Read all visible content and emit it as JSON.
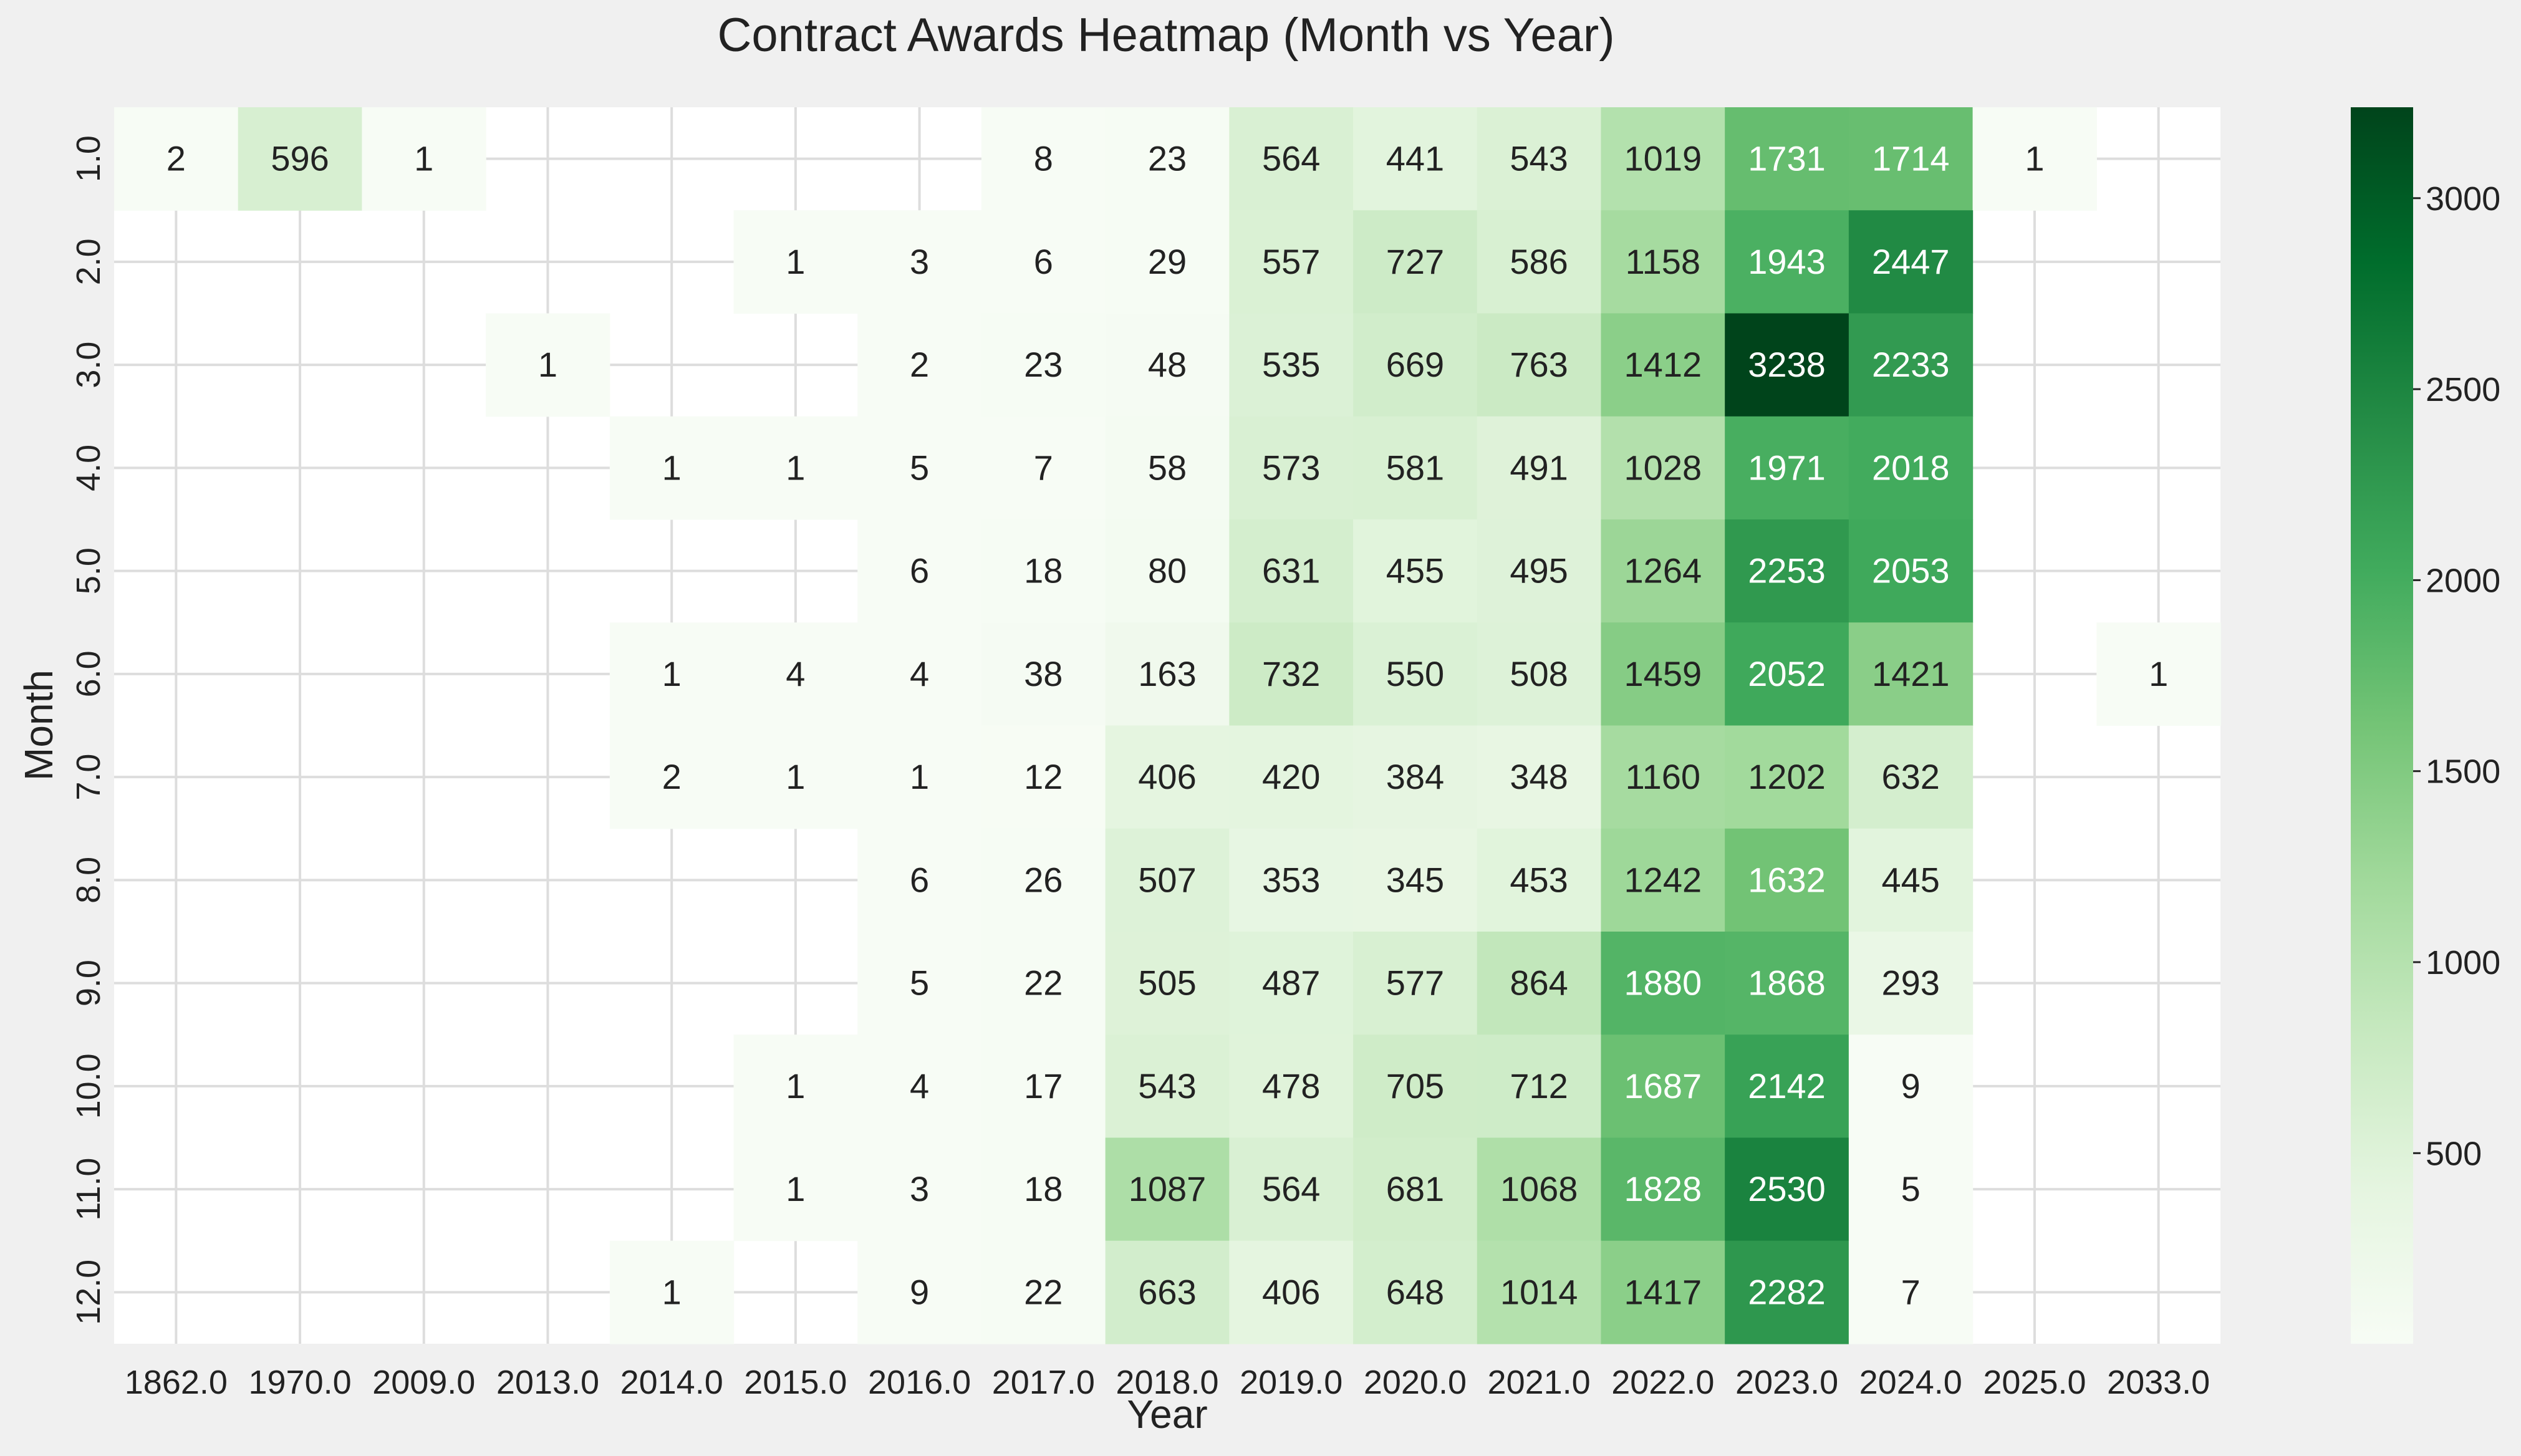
{
  "chart_data": {
    "type": "heatmap",
    "title": "Contract Awards Heatmap (Month vs Year)",
    "xlabel": "Year",
    "ylabel": "Month",
    "x_categories": [
      "1862.0",
      "1970.0",
      "2009.0",
      "2013.0",
      "2014.0",
      "2015.0",
      "2016.0",
      "2017.0",
      "2018.0",
      "2019.0",
      "2020.0",
      "2021.0",
      "2022.0",
      "2023.0",
      "2024.0",
      "2025.0",
      "2033.0"
    ],
    "y_categories": [
      "1.0",
      "2.0",
      "3.0",
      "4.0",
      "5.0",
      "6.0",
      "7.0",
      "8.0",
      "9.0",
      "10.0",
      "11.0",
      "12.0"
    ],
    "values": [
      [
        2,
        596,
        1,
        null,
        null,
        null,
        null,
        8,
        23,
        564,
        441,
        543,
        1019,
        1731,
        1714,
        1,
        null
      ],
      [
        null,
        null,
        null,
        null,
        null,
        1,
        3,
        6,
        29,
        557,
        727,
        586,
        1158,
        1943,
        2447,
        null,
        null
      ],
      [
        null,
        null,
        null,
        1,
        null,
        null,
        2,
        23,
        48,
        535,
        669,
        763,
        1412,
        3238,
        2233,
        null,
        null
      ],
      [
        null,
        null,
        null,
        null,
        1,
        1,
        5,
        7,
        58,
        573,
        581,
        491,
        1028,
        1971,
        2018,
        null,
        null
      ],
      [
        null,
        null,
        null,
        null,
        null,
        null,
        6,
        18,
        80,
        631,
        455,
        495,
        1264,
        2253,
        2053,
        null,
        null
      ],
      [
        null,
        null,
        null,
        null,
        1,
        4,
        4,
        38,
        163,
        732,
        550,
        508,
        1459,
        2052,
        1421,
        null,
        1
      ],
      [
        null,
        null,
        null,
        null,
        2,
        1,
        1,
        12,
        406,
        420,
        384,
        348,
        1160,
        1202,
        632,
        null,
        null
      ],
      [
        null,
        null,
        null,
        null,
        null,
        null,
        6,
        26,
        507,
        353,
        345,
        453,
        1242,
        1632,
        445,
        null,
        null
      ],
      [
        null,
        null,
        null,
        null,
        null,
        null,
        5,
        22,
        505,
        487,
        577,
        864,
        1880,
        1868,
        293,
        null,
        null
      ],
      [
        null,
        null,
        null,
        null,
        null,
        1,
        4,
        17,
        543,
        478,
        705,
        712,
        1687,
        2142,
        9,
        null,
        null
      ],
      [
        null,
        null,
        null,
        null,
        null,
        1,
        3,
        18,
        1087,
        564,
        681,
        1068,
        1828,
        2530,
        5,
        null,
        null
      ],
      [
        null,
        null,
        null,
        null,
        1,
        null,
        9,
        22,
        663,
        406,
        648,
        1014,
        1417,
        2282,
        7,
        null,
        null
      ]
    ],
    "vmin": 1,
    "vmax": 3238,
    "colormap": "Greens",
    "colorbar_ticks": [
      500,
      1000,
      1500,
      2000,
      2500,
      3000
    ],
    "grid": true,
    "colors": {
      "background": "#f0f0f0",
      "plot_background": "#ffffff",
      "grid": "#dddddd",
      "text_dark": "#222222",
      "text_light": "#ffffff"
    }
  }
}
